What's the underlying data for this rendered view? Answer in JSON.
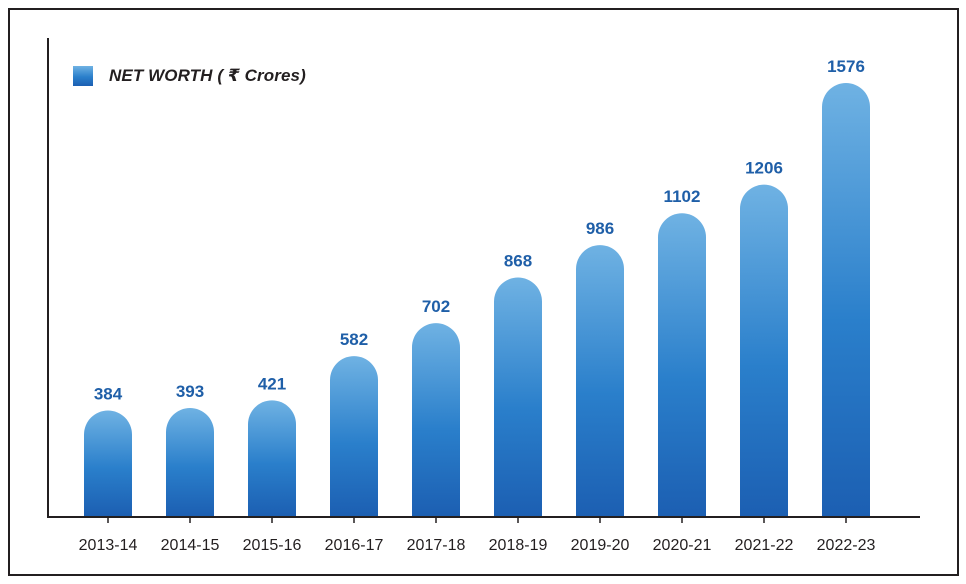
{
  "legend": {
    "label": "NET WORTH ( ₹ Crores)",
    "color": "#2a7fcb"
  },
  "colors": {
    "bar_top": "#6fb2e3",
    "bar_mid": "#2a7fcb",
    "bar_bottom": "#1c5fb2",
    "value_label": "#1f5fa8",
    "axis": "#231f20"
  },
  "chart_data": {
    "type": "bar",
    "categories": [
      "2013-14",
      "2014-15",
      "2015-16",
      "2016-17",
      "2017-18",
      "2018-19",
      "2019-20",
      "2020-21",
      "2021-22",
      "2022-23"
    ],
    "series": [
      {
        "name": "NET WORTH ( ₹ Crores)",
        "values": [
          384,
          393,
          421,
          582,
          702,
          868,
          986,
          1102,
          1206,
          1576
        ]
      }
    ],
    "data_labels": [
      "384",
      "393",
      "421",
      "582",
      "702",
      "868",
      "986",
      "1102",
      "1206",
      "1576"
    ],
    "title": "",
    "xlabel": "",
    "ylabel": "",
    "ylim": [
      0,
      1700
    ],
    "grid": false,
    "legend_position": "top-left"
  }
}
